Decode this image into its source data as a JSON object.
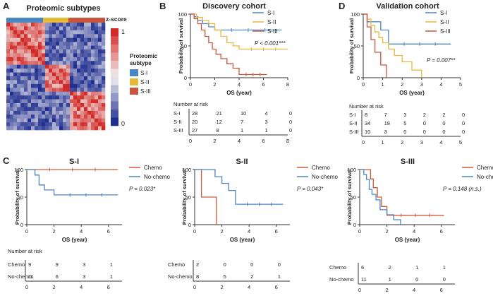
{
  "colors": {
    "S-I": "#4a86c5",
    "S-II": "#e6b93b",
    "S-III": "#c8553d",
    "chemo": "#d05a3a",
    "nochemo": "#4a86c5",
    "heat_low": "#1f2d8f",
    "heat_mid": "#f2f2f2",
    "heat_high": "#d22b27"
  },
  "panelA": {
    "letter": "A",
    "title": "Proteomic subtypes",
    "colorbar": {
      "title": "z-score",
      "max_label": "1",
      "min_label": "0"
    },
    "legend": {
      "title": "Proteomic subtype",
      "items": [
        "S-I",
        "S-II",
        "S-III"
      ]
    }
  },
  "chart_data": [
    {
      "id": "B",
      "type": "line",
      "letter": "B",
      "title": "Discovery cohort",
      "xlabel": "OS (year)",
      "ylabel": "Probability of survival",
      "xlim": [
        0,
        8
      ],
      "ylim": [
        0,
        100
      ],
      "xticks": [
        0,
        2,
        4,
        6,
        8
      ],
      "yticks": [
        0,
        50,
        100
      ],
      "pvalue": "P < 0.001***",
      "series": [
        {
          "name": "S-I",
          "x": [
            0,
            0.3,
            0.6,
            1.0,
            1.5,
            2.0,
            7.5
          ],
          "y": [
            100,
            96,
            90,
            85,
            80,
            75,
            75
          ]
        },
        {
          "name": "S-II",
          "x": [
            0,
            0.5,
            1.0,
            1.5,
            2.0,
            2.5,
            3.0,
            3.5,
            4.0,
            8.0
          ],
          "y": [
            100,
            95,
            90,
            85,
            75,
            65,
            55,
            50,
            45,
            45
          ]
        },
        {
          "name": "S-III",
          "x": [
            0,
            0.3,
            0.6,
            0.9,
            1.2,
            1.5,
            1.8,
            2.1,
            2.5,
            3.0,
            3.5,
            4.0,
            6.3
          ],
          "y": [
            100,
            93,
            85,
            75,
            65,
            55,
            45,
            37,
            30,
            22,
            15,
            5,
            5
          ]
        }
      ],
      "risk_table": {
        "title": "Number at risk",
        "timepoints": [
          "0",
          "2",
          "4",
          "6",
          "8"
        ],
        "rows": [
          {
            "label": "S-I",
            "values": [
              "28",
              "21",
              "10",
              "4",
              "0"
            ]
          },
          {
            "label": "S-II",
            "values": [
              "20",
              "12",
              "7",
              "3",
              "0"
            ]
          },
          {
            "label": "S-III",
            "values": [
              "27",
              "8",
              "1",
              "1",
              "0"
            ]
          }
        ]
      }
    },
    {
      "id": "D",
      "type": "line",
      "letter": "D",
      "title": "Validation cohort",
      "xlabel": "OS (year)",
      "ylabel": "Probability of survival",
      "xlim": [
        0,
        5
      ],
      "ylim": [
        0,
        100
      ],
      "xticks": [
        0,
        1,
        2,
        3,
        4,
        5
      ],
      "yticks": [
        0,
        50,
        100
      ],
      "pvalue": "P = 0.007**",
      "series": [
        {
          "name": "S-I",
          "x": [
            0,
            0.2,
            0.9,
            1.3,
            4.5
          ],
          "y": [
            100,
            88,
            75,
            53,
            53
          ]
        },
        {
          "name": "S-II",
          "x": [
            0,
            0.2,
            0.4,
            0.6,
            0.8,
            1.0,
            1.3,
            1.6,
            2.0,
            2.5,
            3.0
          ],
          "y": [
            100,
            92,
            82,
            72,
            63,
            55,
            45,
            35,
            25,
            12,
            0
          ]
        },
        {
          "name": "S-III",
          "x": [
            0,
            0.2,
            0.4,
            0.6,
            0.9,
            1.2
          ],
          "y": [
            100,
            80,
            60,
            40,
            20,
            0
          ]
        }
      ],
      "risk_table": {
        "title": "Number at risk",
        "timepoints": [
          "0",
          "1",
          "2",
          "3",
          "4",
          "5"
        ],
        "rows": [
          {
            "label": "S-I",
            "values": [
              "8",
              "7",
              "3",
              "2",
              "2",
              "0"
            ]
          },
          {
            "label": "S-II",
            "values": [
              "34",
              "18",
              "5",
              "0",
              "0",
              "0"
            ]
          },
          {
            "label": "S-III",
            "values": [
              "10",
              "3",
              "0",
              "0",
              "0",
              "0"
            ]
          }
        ]
      }
    },
    {
      "id": "C1",
      "type": "line",
      "letter": "C",
      "title": "S-I",
      "xlabel": "OS (year)",
      "ylabel": "Probability of survival",
      "xlim": [
        0,
        7
      ],
      "ylim": [
        0,
        100
      ],
      "xticks": [
        0,
        2,
        4,
        6
      ],
      "yticks": [
        0,
        50,
        100
      ],
      "pvalue": "P = 0.023*",
      "series": [
        {
          "name": "Chemo",
          "x": [
            0,
            6.7
          ],
          "y": [
            100,
            100
          ]
        },
        {
          "name": "No-chemo",
          "x": [
            0,
            0.6,
            0.9,
            1.3,
            2.0,
            6.7
          ],
          "y": [
            100,
            90,
            72,
            63,
            54,
            54
          ]
        }
      ],
      "risk_table": {
        "title": "Number at risk",
        "timepoints": [
          "0",
          "2",
          "4",
          "6"
        ],
        "rows": [
          {
            "label": "Chemo",
            "values": [
              "9",
              "9",
              "3",
              "1"
            ]
          },
          {
            "label": "No-chemo",
            "values": [
              "11",
              "6",
              "3",
              "1"
            ]
          }
        ]
      }
    },
    {
      "id": "C2",
      "type": "line",
      "letter": "",
      "title": "S-II",
      "xlabel": "OS (year)",
      "ylabel": "Probability of survival",
      "xlim": [
        0,
        7
      ],
      "ylim": [
        0,
        100
      ],
      "xticks": [
        0,
        2,
        4,
        6
      ],
      "yticks": [
        0,
        50,
        100
      ],
      "pvalue": "P = 0.043*",
      "series": [
        {
          "name": "Chemo",
          "x": [
            0,
            0.5,
            1.6
          ],
          "y": [
            100,
            50,
            0
          ]
        },
        {
          "name": "No-chemo",
          "x": [
            0,
            1.5,
            2.0,
            2.5,
            3.0,
            6.5
          ],
          "y": [
            100,
            87,
            75,
            62,
            37,
            37
          ]
        }
      ],
      "risk_table": {
        "title": "",
        "timepoints": [
          "0",
          "2",
          "4",
          "6"
        ],
        "rows": [
          {
            "label": "Chemo",
            "values": [
              "2",
              "0",
              "0",
              "0"
            ]
          },
          {
            "label": "No-chemo",
            "values": [
              "8",
              "5",
              "2",
              "1"
            ]
          }
        ]
      }
    },
    {
      "id": "C3",
      "type": "line",
      "letter": "",
      "title": "S-III",
      "xlabel": "OS (year)",
      "ylabel": "Probability of survival",
      "xlim": [
        0,
        7
      ],
      "ylim": [
        0,
        100
      ],
      "xticks": [
        0,
        2,
        4,
        6
      ],
      "yticks": [
        0,
        50,
        100
      ],
      "pvalue": "P = 0.148 (n.s.)",
      "series": [
        {
          "name": "Chemo",
          "x": [
            0,
            0.8,
            1.0,
            1.3,
            1.6,
            2.0,
            6.2
          ],
          "y": [
            100,
            83,
            67,
            50,
            33,
            17,
            17
          ]
        },
        {
          "name": "No-chemo",
          "x": [
            0,
            0.3,
            0.5,
            0.7,
            0.9,
            1.2,
            1.5,
            2.0,
            2.5,
            3.0
          ],
          "y": [
            100,
            91,
            82,
            64,
            55,
            45,
            27,
            18,
            9,
            0
          ]
        }
      ],
      "risk_table": {
        "title": "Number at risk",
        "timepoints": [
          "0",
          "2",
          "4",
          "6"
        ],
        "rows": [
          {
            "label": "Chemo",
            "values": [
              "6",
              "2",
              "1",
              "1"
            ]
          },
          {
            "label": "No-chemo",
            "values": [
              "11",
              "1",
              "0",
              "0"
            ]
          }
        ]
      }
    }
  ]
}
